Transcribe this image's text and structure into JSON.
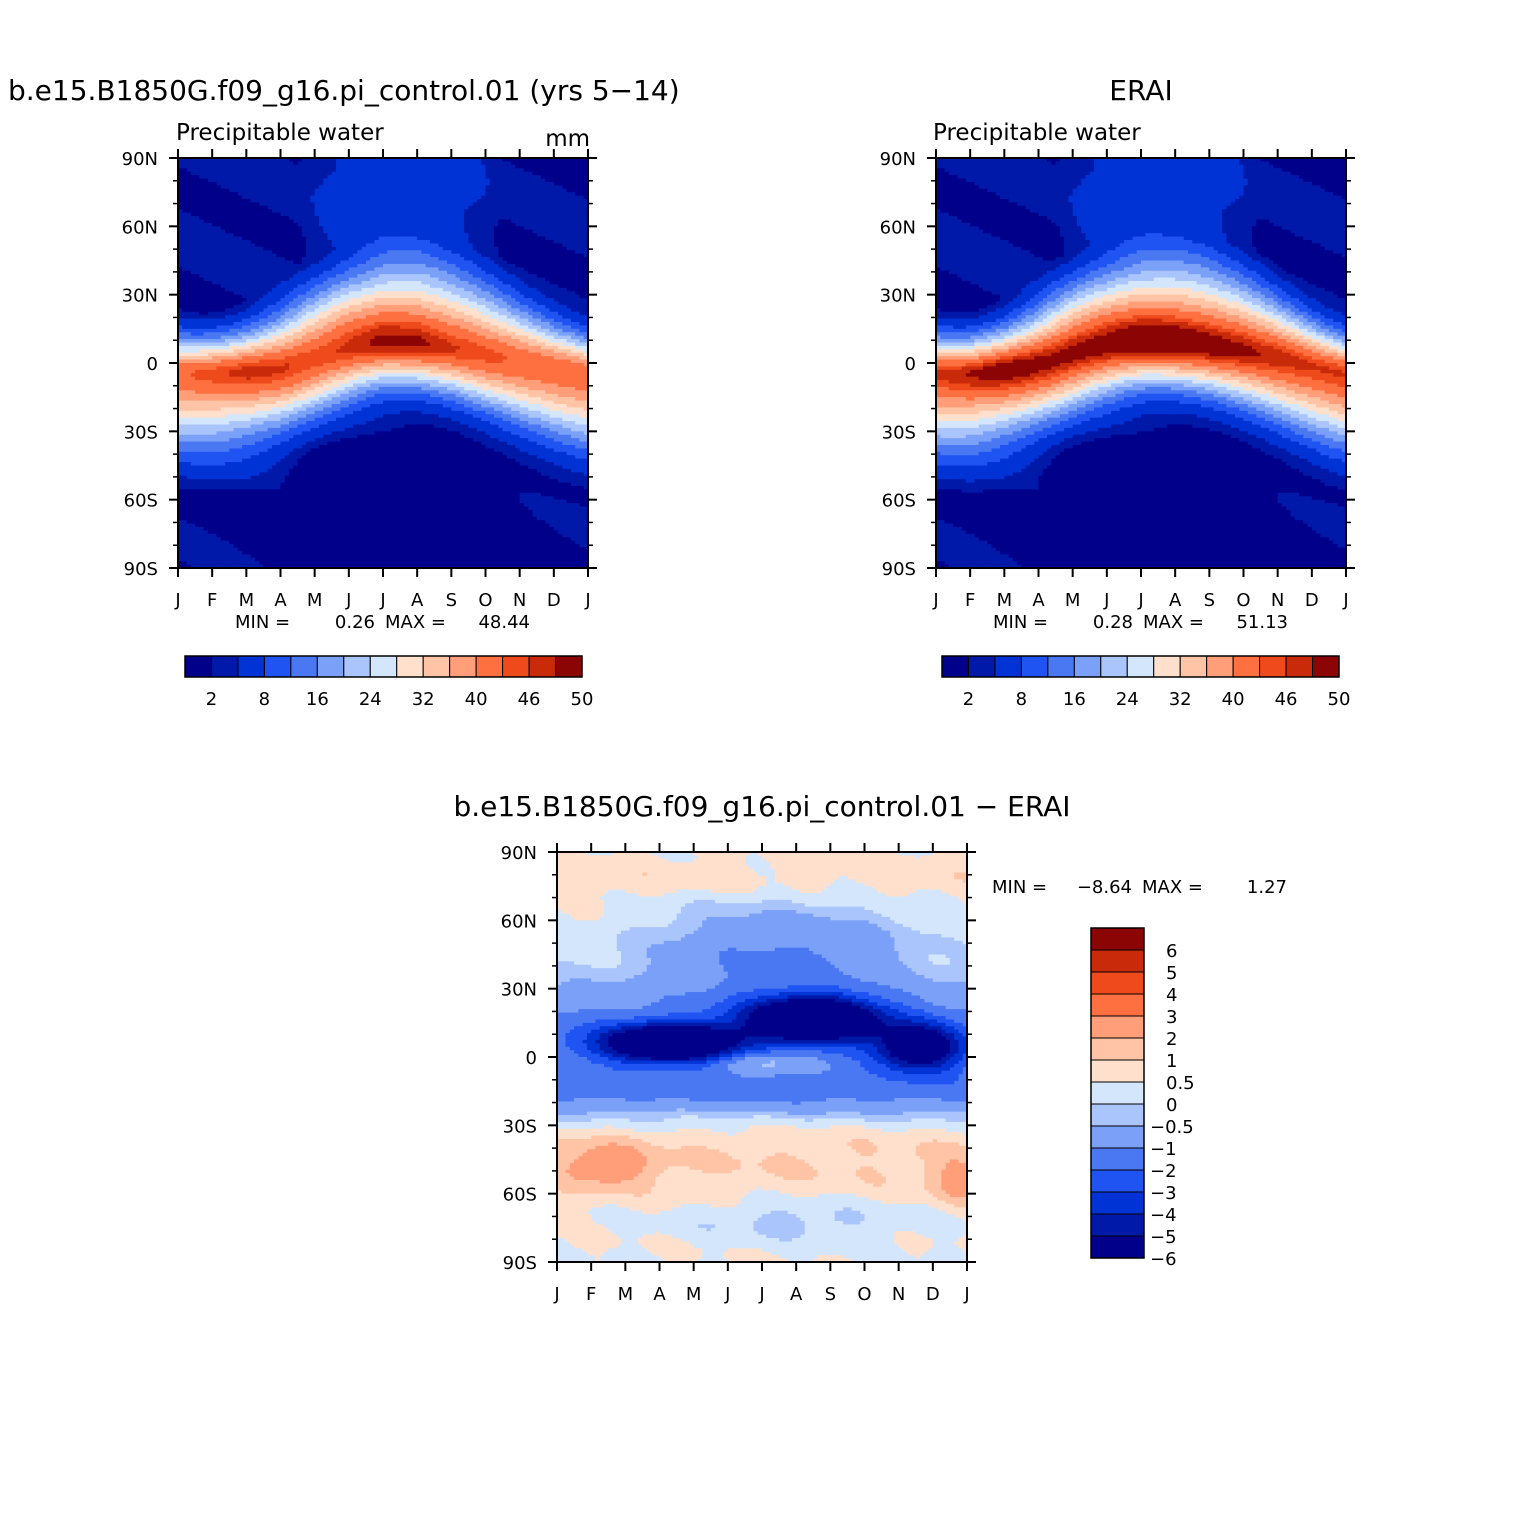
{
  "chart_data": [
    {
      "type": "heatmap",
      "title": "b.e15.B1850G.f09_g16.pi_control.01 (yrs 5−14)",
      "subtitle_left": "Precipitable water",
      "subtitle_right": "mm",
      "x_ticks": [
        "J",
        "F",
        "M",
        "A",
        "M",
        "J",
        "J",
        "A",
        "S",
        "O",
        "N",
        "D",
        "J"
      ],
      "y_ticks": [
        "90N",
        "60N",
        "30N",
        "0",
        "30S",
        "60S",
        "90S"
      ],
      "stats": {
        "min_label": "MIN =",
        "min": "0.26",
        "max_label": "MAX =",
        "max": "48.44"
      },
      "levels": [
        2,
        4,
        8,
        12,
        16,
        20,
        24,
        28,
        32,
        36,
        40,
        44,
        46,
        48,
        50
      ],
      "colorbar_labels": [
        "2",
        "8",
        "16",
        "24",
        "32",
        "40",
        "46",
        "50"
      ],
      "colors": [
        "#00008a",
        "#0019a8",
        "#0033d6",
        "#1f54f2",
        "#4a78f2",
        "#7aa0f8",
        "#aac4fc",
        "#d4e6fc",
        "#ffe0cc",
        "#ffc4a6",
        "#ff9e78",
        "#ff7040",
        "#ee4a1c",
        "#c82a0a",
        "#8c0505"
      ],
      "field": {
        "months": [
          "J",
          "F",
          "M",
          "A",
          "M",
          "J",
          "J",
          "A",
          "S",
          "O",
          "N",
          "D"
        ],
        "summary": "zonal-mean precipitable water; tropical maximum ~48 mm near 5S in boreal winter migrating to ~10N in Jul-Aug; polar values 1-5 mm",
        "itcz_lat": [
          -5,
          -5,
          -4,
          -2,
          2,
          6,
          9,
          9,
          7,
          4,
          1,
          -2
        ],
        "peak": [
          44,
          45,
          46,
          46,
          46,
          47,
          48,
          48,
          46,
          45,
          44,
          44
        ]
      },
      "xlim": [
        "J",
        "J"
      ],
      "ylim": [
        "90S",
        "90N"
      ]
    },
    {
      "type": "heatmap",
      "title": "ERAI",
      "subtitle_left": "Precipitable water",
      "subtitle_right": "",
      "x_ticks": [
        "J",
        "F",
        "M",
        "A",
        "M",
        "J",
        "J",
        "A",
        "S",
        "O",
        "N",
        "D",
        "J"
      ],
      "y_ticks": [
        "90N",
        "60N",
        "30N",
        "0",
        "30S",
        "60S",
        "90S"
      ],
      "stats": {
        "min_label": "MIN =",
        "min": "0.28",
        "max_label": "MAX =",
        "max": "51.13"
      },
      "levels": [
        2,
        4,
        8,
        12,
        16,
        20,
        24,
        28,
        32,
        36,
        40,
        44,
        46,
        48,
        50
      ],
      "colorbar_labels": [
        "2",
        "8",
        "16",
        "24",
        "32",
        "40",
        "46",
        "50"
      ],
      "colors": [
        "#00008a",
        "#0019a8",
        "#0033d6",
        "#1f54f2",
        "#4a78f2",
        "#7aa0f8",
        "#aac4fc",
        "#d4e6fc",
        "#ffe0cc",
        "#ffc4a6",
        "#ff9e78",
        "#ff7040",
        "#ee4a1c",
        "#c82a0a",
        "#8c0505"
      ],
      "field": {
        "months": [
          "J",
          "F",
          "M",
          "A",
          "M",
          "J",
          "J",
          "A",
          "S",
          "O",
          "N",
          "D"
        ],
        "summary": "ERA-Interim zonal-mean precipitable water; broader and moister tropics than the model, maximum ~51 mm",
        "itcz_lat": [
          -5,
          -5,
          -3,
          0,
          4,
          7,
          9,
          9,
          8,
          6,
          3,
          -1
        ],
        "peak": [
          47,
          48,
          49,
          49,
          50,
          50,
          51,
          51,
          50,
          49,
          48,
          47
        ]
      },
      "xlim": [
        "J",
        "J"
      ],
      "ylim": [
        "90S",
        "90N"
      ]
    },
    {
      "type": "heatmap",
      "title": "b.e15.B1850G.f09_g16.pi_control.01 − ERAI",
      "x_ticks": [
        "J",
        "F",
        "M",
        "A",
        "M",
        "J",
        "J",
        "A",
        "S",
        "O",
        "N",
        "D",
        "J"
      ],
      "y_ticks": [
        "90N",
        "60N",
        "30N",
        "0",
        "30S",
        "60S",
        "90S"
      ],
      "stats": {
        "min_label": "MIN =",
        "min": "−8.64",
        "max_label": "MAX =",
        "max": "1.27"
      },
      "levels": [
        -6,
        -5,
        -4,
        -3,
        -2,
        -1,
        -0.5,
        0,
        0.5,
        1,
        2,
        3,
        4,
        5,
        6
      ],
      "colorbar_labels": [
        "6",
        "5",
        "4",
        "3",
        "2",
        "1",
        "0.5",
        "0",
        "−0.5",
        "−1",
        "−2",
        "−3",
        "−4",
        "−5",
        "−6"
      ],
      "colors": [
        "#00008a",
        "#0019a8",
        "#0033d6",
        "#1f54f2",
        "#4a78f2",
        "#7aa0f8",
        "#aac4fc",
        "#d4e6fc",
        "#ffe0cc",
        "#ffc4a6",
        "#ff9e78",
        "#ff7040",
        "#ee4a1c",
        "#c82a0a",
        "#8c0505"
      ],
      "field": {
        "summary": "model minus reanalysis: dry bias up to -8.64 mm in northern tropics (Mar-May near 5N and Aug near 15N), small positive bias up to 1.27 mm in southern mid-latitudes and northern high latitudes"
      },
      "xlim": [
        "J",
        "J"
      ],
      "ylim": [
        "90S",
        "90N"
      ]
    }
  ]
}
